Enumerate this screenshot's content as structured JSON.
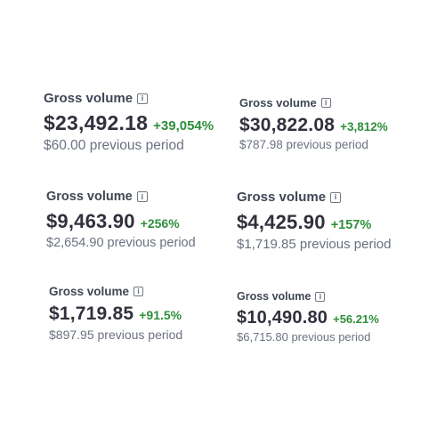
{
  "colors": {
    "label": "#3f4654",
    "amount": "#30313d",
    "positive_change": "#2e8f3b",
    "secondary_text": "#6a7180",
    "icon": "#717785",
    "background": "#ffffff"
  },
  "info_icon": {
    "icon_name": "info-icon",
    "glyph": "i"
  },
  "cards": [
    {
      "label": "Gross volume",
      "amount": "$23,492.18",
      "change": "+39,054%",
      "previous": "$60.00 previous period"
    },
    {
      "label": "Gross volume",
      "amount": "$30,822.08",
      "change": "+3,812%",
      "previous": "$787.98 previous period"
    },
    {
      "label": "Gross volume",
      "amount": "$9,463.90",
      "change": "+256%",
      "previous": "$2,654.90 previous period"
    },
    {
      "label": "Gross volume",
      "amount": "$4,425.90",
      "change": "+157%",
      "previous": "$1,719.85 previous period"
    },
    {
      "label": "Gross volume",
      "amount": "$1,719.85",
      "change": "+91.5%",
      "previous": "$897.95 previous period"
    },
    {
      "label": "Gross volume",
      "amount": "$10,490.80",
      "change": "+56.21%",
      "previous": "$6,715.80 previous period"
    }
  ]
}
